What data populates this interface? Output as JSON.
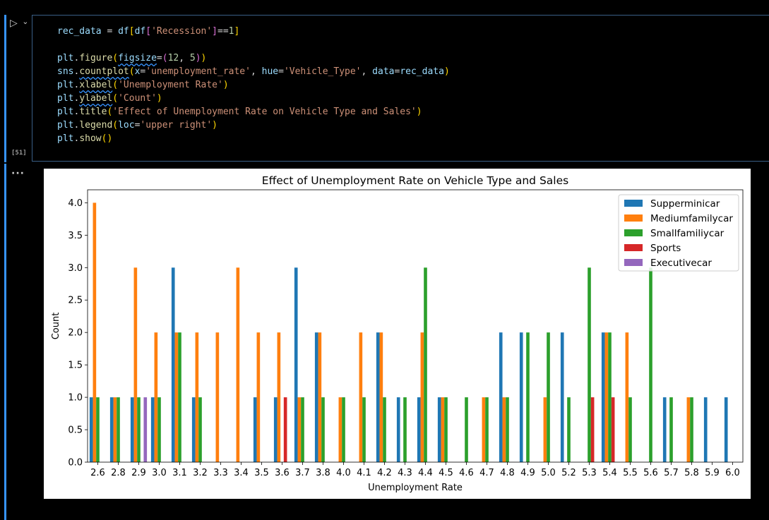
{
  "cell": {
    "run_icon": "▷",
    "chevron_icon": "⌄",
    "exec_count": "[51]",
    "output_menu": "···"
  },
  "code_lines": [
    [
      [
        "rec_data",
        "var"
      ],
      [
        " = ",
        "op"
      ],
      [
        "df",
        "var"
      ],
      [
        "[",
        "p1"
      ],
      [
        "df",
        "var"
      ],
      [
        "[",
        "p2"
      ],
      [
        "'Recession'",
        "str"
      ],
      [
        "]",
        "p2"
      ],
      [
        "==",
        "op"
      ],
      [
        "1",
        "num"
      ],
      [
        "]",
        "p1"
      ]
    ],
    [],
    [
      [
        "plt",
        "var"
      ],
      [
        ".",
        "op"
      ],
      [
        "figure",
        "fn"
      ],
      [
        "(",
        "p1"
      ],
      [
        "figsize",
        "varsq"
      ],
      [
        "=",
        "op"
      ],
      [
        "(",
        "p2"
      ],
      [
        "12",
        "num"
      ],
      [
        ", ",
        "op"
      ],
      [
        "5",
        "num"
      ],
      [
        ")",
        "p2"
      ],
      [
        ")",
        "p1"
      ]
    ],
    [
      [
        "sns",
        "var"
      ],
      [
        ".",
        "op"
      ],
      [
        "countplot",
        "fnsq"
      ],
      [
        "(",
        "p1"
      ],
      [
        "x",
        "var"
      ],
      [
        "=",
        "op"
      ],
      [
        "'unemployment_rate'",
        "str"
      ],
      [
        ", ",
        "op"
      ],
      [
        "hue",
        "var"
      ],
      [
        "=",
        "op"
      ],
      [
        "'Vehicle_Type'",
        "str"
      ],
      [
        ", ",
        "op"
      ],
      [
        "data",
        "var"
      ],
      [
        "=",
        "op"
      ],
      [
        "rec_data",
        "var"
      ],
      [
        ")",
        "p1"
      ]
    ],
    [
      [
        "plt",
        "var"
      ],
      [
        ".",
        "op"
      ],
      [
        "xlabel",
        "fnsq"
      ],
      [
        "(",
        "p1"
      ],
      [
        "'Unemployment Rate'",
        "str"
      ],
      [
        ")",
        "p1"
      ]
    ],
    [
      [
        "plt",
        "var"
      ],
      [
        ".",
        "op"
      ],
      [
        "ylabel",
        "fnsq"
      ],
      [
        "(",
        "p1"
      ],
      [
        "'Count'",
        "str"
      ],
      [
        ")",
        "p1"
      ]
    ],
    [
      [
        "plt",
        "var"
      ],
      [
        ".",
        "op"
      ],
      [
        "title",
        "fn"
      ],
      [
        "(",
        "p1"
      ],
      [
        "'Effect of Unemployment Rate on Vehicle Type and Sales'",
        "str"
      ],
      [
        ")",
        "p1"
      ]
    ],
    [
      [
        "plt",
        "var"
      ],
      [
        ".",
        "op"
      ],
      [
        "legend",
        "fn"
      ],
      [
        "(",
        "p1"
      ],
      [
        "loc",
        "var"
      ],
      [
        "=",
        "op"
      ],
      [
        "'upper right'",
        "str"
      ],
      [
        ")",
        "p1"
      ]
    ],
    [
      [
        "plt",
        "var"
      ],
      [
        ".",
        "op"
      ],
      [
        "show",
        "fn"
      ],
      [
        "()",
        "p1"
      ]
    ]
  ],
  "chart_data": {
    "type": "bar",
    "title": "Effect of Unemployment Rate on Vehicle Type and Sales",
    "xlabel": "Unemployment Rate",
    "ylabel": "Count",
    "ylim": [
      0,
      4.2
    ],
    "yticks": [
      "0.0",
      "0.5",
      "1.0",
      "1.5",
      "2.0",
      "2.5",
      "3.0",
      "3.5",
      "4.0"
    ],
    "legend_position": "top-right",
    "grid": false,
    "categories": [
      "2.6",
      "2.8",
      "2.9",
      "3.0",
      "3.1",
      "3.2",
      "3.3",
      "3.4",
      "3.5",
      "3.6",
      "3.7",
      "3.8",
      "4.0",
      "4.1",
      "4.2",
      "4.3",
      "4.4",
      "4.5",
      "4.6",
      "4.7",
      "4.8",
      "4.9",
      "5.0",
      "5.2",
      "5.3",
      "5.4",
      "5.5",
      "5.6",
      "5.7",
      "5.8",
      "5.9",
      "6.0"
    ],
    "series": [
      {
        "name": "Supperminicar",
        "color": "#1f77b4",
        "values": [
          1,
          1,
          1,
          1,
          3,
          1,
          0,
          0,
          1,
          1,
          3,
          2,
          0,
          0,
          2,
          1,
          1,
          1,
          0,
          0,
          2,
          2,
          0,
          2,
          0,
          2,
          0,
          0,
          1,
          0,
          1,
          1
        ]
      },
      {
        "name": "Mediumfamilycar",
        "color": "#ff7f0e",
        "values": [
          4,
          1,
          3,
          2,
          2,
          2,
          2,
          3,
          2,
          2,
          1,
          2,
          1,
          2,
          2,
          0,
          2,
          1,
          0,
          1,
          1,
          0,
          1,
          0,
          0,
          2,
          2,
          0,
          0,
          1,
          0,
          0
        ]
      },
      {
        "name": "Smallfamiliycar",
        "color": "#2ca02c",
        "values": [
          1,
          1,
          1,
          1,
          2,
          1,
          0,
          0,
          0,
          0,
          1,
          1,
          1,
          1,
          1,
          1,
          3,
          1,
          1,
          1,
          1,
          2,
          2,
          1,
          3,
          2,
          1,
          3,
          1,
          1,
          0,
          0
        ]
      },
      {
        "name": "Sports",
        "color": "#d62728",
        "values": [
          0,
          0,
          0,
          0,
          0,
          0,
          0,
          0,
          0,
          1,
          0,
          0,
          0,
          0,
          0,
          0,
          0,
          0,
          0,
          0,
          0,
          0,
          0,
          0,
          1,
          1,
          0,
          0,
          0,
          0,
          0,
          0
        ]
      },
      {
        "name": "Executivecar",
        "color": "#9467bd",
        "values": [
          0,
          0,
          1,
          0,
          0,
          0,
          0,
          0,
          0,
          0,
          0,
          0,
          0,
          0,
          0,
          0,
          0,
          0,
          0,
          0,
          0,
          0,
          0,
          0,
          0,
          0,
          0,
          0,
          0,
          0,
          0,
          0
        ]
      }
    ]
  }
}
